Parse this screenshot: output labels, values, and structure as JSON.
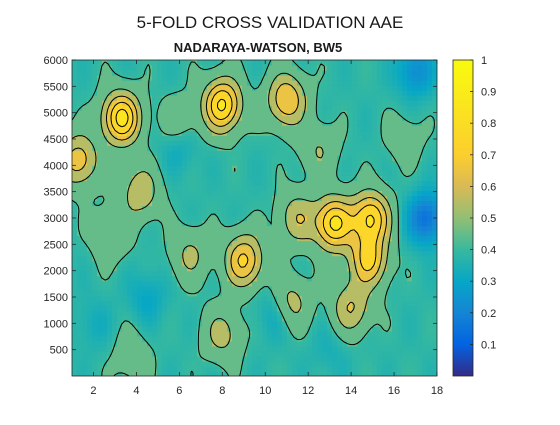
{
  "chart_data": {
    "type": "heatmap",
    "title": "5-FOLD CROSS VALIDATION AAE",
    "subtitle": "NADARAYA-WATSON, BW5",
    "xlabel": "",
    "ylabel": "",
    "xlim": [
      1,
      18
    ],
    "ylim": [
      0,
      6000
    ],
    "x_ticks": [
      2,
      4,
      6,
      8,
      10,
      12,
      14,
      16,
      18
    ],
    "y_ticks": [
      500,
      1000,
      1500,
      2000,
      2500,
      3000,
      3500,
      4000,
      4500,
      5000,
      5500,
      6000
    ],
    "colorbar": {
      "colormap": "parula",
      "range": [
        0,
        1
      ],
      "ticks": [
        0.1,
        0.2,
        0.3,
        0.4,
        0.5,
        0.6,
        0.7,
        0.8,
        0.9,
        1
      ]
    },
    "contour_levels": [
      0.4,
      0.5,
      0.6,
      0.7,
      0.8
    ],
    "base_value": 0.38,
    "peaks": [
      {
        "x": 3.3,
        "y": 4900,
        "value": 0.84
      },
      {
        "x": 8.0,
        "y": 5150,
        "value": 0.82
      },
      {
        "x": 11.0,
        "y": 5250,
        "value": 0.7
      },
      {
        "x": 1.3,
        "y": 4100,
        "value": 0.66
      },
      {
        "x": 4.2,
        "y": 3500,
        "value": 0.58
      },
      {
        "x": 9.0,
        "y": 2200,
        "value": 0.72
      },
      {
        "x": 13.2,
        "y": 2900,
        "value": 0.82
      },
      {
        "x": 14.9,
        "y": 3000,
        "value": 0.8
      },
      {
        "x": 14.8,
        "y": 2200,
        "value": 0.72
      },
      {
        "x": 11.5,
        "y": 3000,
        "value": 0.58
      },
      {
        "x": 11.2,
        "y": 1400,
        "value": 0.55
      },
      {
        "x": 6.5,
        "y": 2300,
        "value": 0.52
      },
      {
        "x": 2.8,
        "y": 2700,
        "value": 0.5
      },
      {
        "x": 8.0,
        "y": 800,
        "value": 0.54
      },
      {
        "x": 14.0,
        "y": 1300,
        "value": 0.6
      },
      {
        "x": 12.5,
        "y": 4300,
        "value": 0.5
      },
      {
        "x": 6.0,
        "y": 4800,
        "value": 0.48
      },
      {
        "x": 16.5,
        "y": 4500,
        "value": 0.45
      },
      {
        "x": 3.8,
        "y": 400,
        "value": 0.46
      }
    ],
    "troughs": [
      {
        "x": 6.0,
        "y": 4400,
        "value": 0.3
      },
      {
        "x": 4.5,
        "y": 1500,
        "value": 0.3
      },
      {
        "x": 17.5,
        "y": 3000,
        "value": 0.14
      },
      {
        "x": 17.0,
        "y": 5800,
        "value": 0.22
      },
      {
        "x": 10.5,
        "y": 1200,
        "value": 0.3
      },
      {
        "x": 2.0,
        "y": 1000,
        "value": 0.33
      },
      {
        "x": 13.0,
        "y": 500,
        "value": 0.34
      }
    ]
  }
}
